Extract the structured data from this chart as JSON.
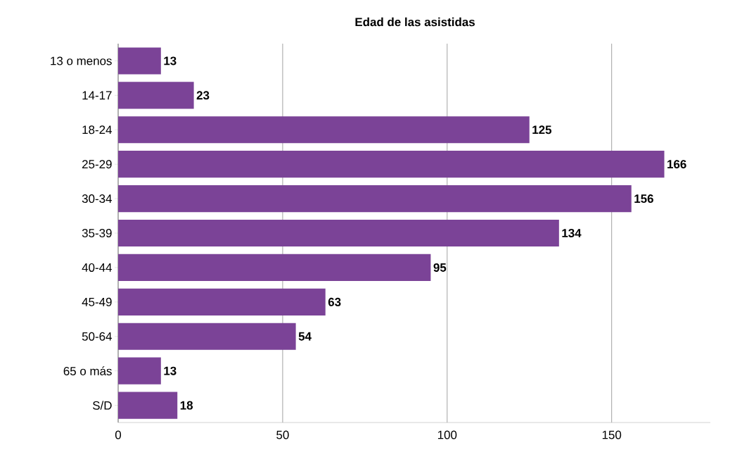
{
  "chart_data": {
    "type": "bar",
    "orientation": "horizontal",
    "title": "Edad de las asistidas",
    "categories": [
      "13 o menos",
      "14-17",
      "18-24",
      "25-29",
      "30-34",
      "35-39",
      "40-44",
      "45-49",
      "50-64",
      "65 o más",
      "S/D"
    ],
    "values": [
      13,
      23,
      125,
      166,
      156,
      134,
      95,
      63,
      54,
      13,
      18
    ],
    "color": "#7b4397",
    "xlim": [
      0,
      180
    ],
    "xticks": [
      0,
      50,
      100,
      150
    ],
    "grid": "x",
    "data_labels": true
  }
}
